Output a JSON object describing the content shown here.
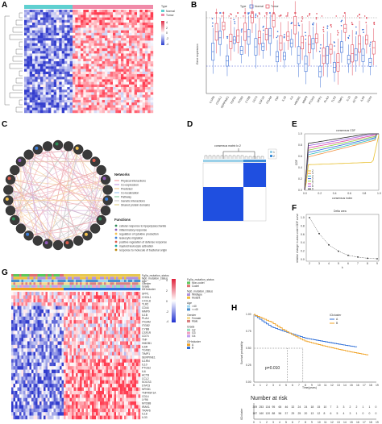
{
  "panels": {
    "A": "A",
    "B": "B",
    "C": "C",
    "D": "D",
    "E": "E",
    "F": "F",
    "G": "G",
    "H": "H"
  },
  "panel_A": {
    "legend_title": "Type",
    "legend_items": [
      "Normal",
      "Tumor"
    ],
    "scale_ticks": [
      "4",
      "2",
      "0",
      "-2",
      "-4"
    ],
    "colors": {
      "high": "#e0304a",
      "low": "#2c3fcf",
      "normal_bar": "#5fd0d0",
      "tumor_bar": "#f08aa8"
    }
  },
  "panel_B": {
    "legend_title": "Type",
    "legend_items": [
      "Normal",
      "Tumor"
    ],
    "ylabel": "Gene expression",
    "genes": [
      "IL1RN",
      "CHI3L1",
      "SERPINE1",
      "TGFB1",
      "ITGB2",
      "CYBB",
      "CD74",
      "CSF1R",
      "ITGAM",
      "TNF",
      "IL1B",
      "IL6",
      "HMGB1",
      "MMP9",
      "PTGS2",
      "SPP1",
      "PLAU",
      "TLR2",
      "TIMP1",
      "IL10",
      "ACTB",
      "IL6R",
      "CD44"
    ],
    "colors": {
      "normal": "#3b6fd6",
      "tumor": "#e04a5a"
    }
  },
  "panel_C": {
    "legend_title_1": "Networks",
    "legend_title_2": "Functions",
    "network_items": [
      "Physical interactions",
      "Co-expression",
      "Predicted",
      "Co-localization",
      "Pathway",
      "Genetic interactions",
      "Shared protein domains"
    ],
    "function_items": [
      "cellular response to lipopolysaccharide",
      "inflammatory response",
      "regulation of cytokine production",
      "leukocyte migration",
      "positive regulation of defense response",
      "myeloid leukocyte activation",
      "response to molecule of bacterial origin"
    ]
  },
  "panel_D": {
    "title": "consensus matrix k=2",
    "legend": [
      "1",
      "2"
    ],
    "colors": {
      "cluster": "#1f4fe0",
      "bar1": "#9ad0e8",
      "bar2": "#3f8fd8"
    }
  },
  "panel_E": {
    "title": "consensus CDF",
    "xlabel": "consensus index",
    "ylabel": "CDF",
    "legend": [
      "2",
      "3",
      "4",
      "5",
      "6",
      "7",
      "8",
      "9"
    ],
    "x_ticks": [
      "0.0",
      "0.2",
      "0.4",
      "0.6",
      "0.8",
      "1.0"
    ],
    "y_ticks": [
      "0.0",
      "0.2",
      "0.4",
      "0.6",
      "0.8",
      "1.0"
    ]
  },
  "panel_F": {
    "title": "Delta area",
    "ylabel": "relative change in area under CDF curve",
    "xlabel": "k",
    "x_ticks": [
      "2",
      "3",
      "4",
      "5",
      "6",
      "7",
      "8",
      "9"
    ],
    "y_ticks": [
      "0.0",
      "0.2",
      "0.4",
      "0.6",
      "0.8",
      "1.0"
    ]
  },
  "panel_G": {
    "annotations": [
      "Fg0a_mutation_status",
      "Ng0_mutation_status",
      "Age",
      "Gender",
      "Grade",
      "IDHrcluster"
    ],
    "legend_title_1": "Fg0a_mutation_status",
    "legend_title_2": "Ng0_mutation_status",
    "legend_items_1": [
      "Non-codel",
      "Codel"
    ],
    "legend_items_2": [
      "Wildtype",
      "Mutant"
    ],
    "legend_age": "Age",
    "legend_age_items": [
      ">40",
      "<=40"
    ],
    "legend_gender": "Gender",
    "legend_gender_items": [
      "Female",
      "Male"
    ],
    "legend_grade": "Grade",
    "legend_grade_items": [
      "G2",
      "G3",
      "G4"
    ],
    "legend_cluster": "IDHrcluster",
    "legend_cluster_items": [
      "A",
      "B"
    ],
    "scale_ticks": [
      "4",
      "2",
      "0",
      "-2",
      "-4"
    ],
    "genes": [
      "SPP1",
      "CHI3L1",
      "CXCL8",
      "TLR2",
      "CD44",
      "MMP9",
      "IL1B",
      "PLAU",
      "ITGAM",
      "ITGB2",
      "CYBB",
      "CSF1R",
      "CD74",
      "TNF",
      "HMGB1",
      "IL6R",
      "TGFB1",
      "TIMP1",
      "SERPINE1",
      "IL1RN",
      "IL10",
      "PTGS2",
      "IL6",
      "ACTB",
      "CCL2",
      "SOCS3",
      "STAT3",
      "NFKB1",
      "TNFRSF1A",
      "CD14",
      "LY96",
      "MYD88",
      "IRAK1",
      "TRAF6",
      "IL18",
      "IL33"
    ]
  },
  "panel_H": {
    "legend_title": "ICIcluster",
    "legend_items": [
      "A",
      "B"
    ],
    "ylabel": "Survival probability",
    "xlabel": "Time(years)",
    "pvalue": "p=0.010",
    "risk_title": "Number at risk",
    "risk_ylabel": "ICIcluster",
    "x_ticks": [
      "0",
      "1",
      "2",
      "3",
      "4",
      "5",
      "6",
      "7",
      "8",
      "9",
      "10",
      "11",
      "12",
      "13",
      "14",
      "15",
      "16",
      "17",
      "18",
      "19"
    ],
    "y_ticks": [
      "0.00",
      "0.25",
      "0.50",
      "0.75",
      "1.00"
    ],
    "risk_rows": [
      [
        "309",
        "253",
        "134",
        "95",
        "65",
        "46",
        "32",
        "24",
        "24",
        "18",
        "15",
        "10",
        "7",
        "3",
        "3",
        "2",
        "2",
        "1",
        "1",
        "0"
      ],
      [
        "187",
        "160",
        "120",
        "88",
        "56",
        "37",
        "29",
        "25",
        "20",
        "13",
        "12",
        "8",
        "6",
        "5",
        "4",
        "3",
        "1",
        "0",
        "0",
        "0"
      ]
    ],
    "colors": {
      "A": "#2f6fd8",
      "B": "#f0a020"
    }
  }
}
